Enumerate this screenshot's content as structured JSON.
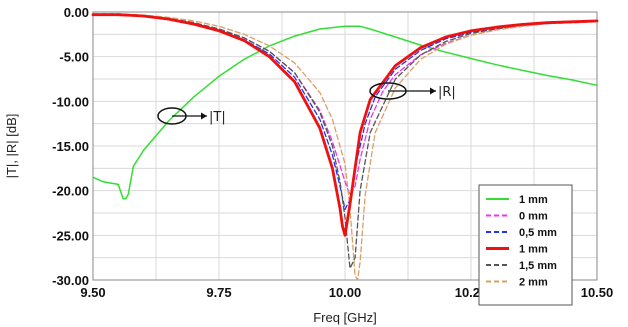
{
  "chart_data": {
    "type": "line",
    "xlabel": "Freq [GHz]",
    "ylabel": "|T|, |R| [dB]",
    "xlim": [
      9.5,
      10.5
    ],
    "ylim": [
      -30,
      0
    ],
    "xticks": [
      9.5,
      9.75,
      10.0,
      10.25,
      10.5
    ],
    "xtick_labels": [
      "9.50",
      "9.75",
      "10.00",
      "10.25",
      "10.50"
    ],
    "yticks": [
      0,
      -5,
      -10,
      -15,
      -20,
      -25,
      -30
    ],
    "ytick_labels": [
      "0.00",
      "-5.00",
      "-10.00",
      "-15.00",
      "-20.00",
      "-25.00",
      "-30.00"
    ],
    "grid": true,
    "legend_position": "lower-right",
    "annotations": [
      {
        "text": "|T|",
        "target": "transmission curve near 9.67 GHz, -12 dB"
      },
      {
        "text": "|R|",
        "target": "reflection curves near 10.13 GHz, -9 dB"
      }
    ],
    "series": [
      {
        "name": "1 mm",
        "color": "#33dd33",
        "style": "solid",
        "width": 1.5,
        "x": [
          9.5,
          9.52,
          9.54,
          9.55,
          9.56,
          9.565,
          9.57,
          9.58,
          9.6,
          9.65,
          9.7,
          9.75,
          9.8,
          9.85,
          9.9,
          9.95,
          10.0,
          10.03,
          10.05,
          10.1,
          10.15,
          10.2,
          10.25,
          10.3,
          10.35,
          10.4,
          10.45,
          10.5
        ],
        "y": [
          -18.5,
          -19.0,
          -19.2,
          -19.3,
          -20.9,
          -20.9,
          -20.4,
          -17.3,
          -15.5,
          -12.2,
          -9.5,
          -7.2,
          -5.3,
          -3.8,
          -2.7,
          -1.9,
          -1.6,
          -1.6,
          -1.9,
          -2.8,
          -3.7,
          -4.5,
          -5.2,
          -5.9,
          -6.5,
          -7.1,
          -7.6,
          -8.2
        ]
      },
      {
        "name": "0 mm",
        "color": "#ee33ee",
        "style": "dashed",
        "width": 1.3,
        "x": [
          9.5,
          9.55,
          9.6,
          9.65,
          9.7,
          9.75,
          9.8,
          9.85,
          9.9,
          9.95,
          9.975,
          10.0,
          10.01,
          10.02,
          10.03,
          10.05,
          10.075,
          10.1,
          10.15,
          10.2,
          10.25,
          10.3,
          10.35,
          10.4,
          10.45,
          10.5
        ],
        "y": [
          -0.3,
          -0.3,
          -0.45,
          -0.75,
          -1.2,
          -1.9,
          -2.9,
          -4.4,
          -6.8,
          -11.0,
          -14.5,
          -19.0,
          -20.5,
          -19.5,
          -16.5,
          -12.0,
          -8.9,
          -7.0,
          -4.8,
          -3.5,
          -2.6,
          -2.0,
          -1.6,
          -1.3,
          -1.2,
          -1.1
        ]
      },
      {
        "name": "0,5 mm",
        "color": "#2233ee",
        "style": "dashed",
        "width": 1.3,
        "x": [
          9.5,
          9.55,
          9.6,
          9.65,
          9.7,
          9.75,
          9.8,
          9.85,
          9.9,
          9.95,
          9.975,
          9.99,
          10.0,
          10.01,
          10.02,
          10.04,
          10.06,
          10.1,
          10.15,
          10.2,
          10.25,
          10.3,
          10.35,
          10.4,
          10.45,
          10.5
        ],
        "y": [
          -0.3,
          -0.3,
          -0.45,
          -0.8,
          -1.3,
          -2.0,
          -3.1,
          -4.7,
          -7.3,
          -12.0,
          -16.0,
          -19.5,
          -22.1,
          -21.0,
          -17.5,
          -12.5,
          -9.5,
          -6.4,
          -4.3,
          -3.0,
          -2.3,
          -1.8,
          -1.5,
          -1.3,
          -1.1,
          -1.0
        ]
      },
      {
        "name": "1 mm",
        "color": "#ee1111",
        "style": "solid",
        "width": 2.8,
        "x": [
          9.5,
          9.55,
          9.6,
          9.65,
          9.7,
          9.75,
          9.8,
          9.85,
          9.9,
          9.95,
          9.975,
          9.99,
          9.995,
          10.0,
          10.01,
          10.03,
          10.05,
          10.1,
          10.15,
          10.2,
          10.25,
          10.3,
          10.35,
          10.4,
          10.45,
          10.5
        ],
        "y": [
          -0.3,
          -0.3,
          -0.45,
          -0.8,
          -1.35,
          -2.1,
          -3.2,
          -5.0,
          -7.8,
          -13.0,
          -17.5,
          -22.0,
          -24.0,
          -25.0,
          -21.5,
          -13.5,
          -9.8,
          -6.0,
          -4.0,
          -2.8,
          -2.1,
          -1.7,
          -1.4,
          -1.2,
          -1.1,
          -1.0
        ]
      },
      {
        "name": "1,5 mm",
        "color": "#555555",
        "style": "dashed",
        "width": 1.3,
        "x": [
          9.5,
          9.55,
          9.6,
          9.65,
          9.7,
          9.75,
          9.8,
          9.85,
          9.9,
          9.95,
          9.975,
          9.99,
          10.0,
          10.01,
          10.02,
          10.03,
          10.05,
          10.1,
          10.15,
          10.2,
          10.25,
          10.3,
          10.35,
          10.4,
          10.45,
          10.5
        ],
        "y": [
          -0.25,
          -0.25,
          -0.4,
          -0.7,
          -1.2,
          -1.9,
          -2.9,
          -4.4,
          -6.8,
          -11.2,
          -15.0,
          -19.0,
          -23.0,
          -28.7,
          -27.5,
          -20.0,
          -13.5,
          -7.5,
          -4.8,
          -3.3,
          -2.4,
          -1.9,
          -1.5,
          -1.3,
          -1.1,
          -1.0
        ]
      },
      {
        "name": "2 mm",
        "color": "#d9a066",
        "style": "dashed",
        "width": 1.3,
        "x": [
          9.5,
          9.55,
          9.6,
          9.65,
          9.7,
          9.75,
          9.8,
          9.85,
          9.9,
          9.95,
          9.975,
          10.0,
          10.01,
          10.02,
          10.025,
          10.03,
          10.04,
          10.06,
          10.1,
          10.15,
          10.2,
          10.25,
          10.3,
          10.35,
          10.4,
          10.45,
          10.5
        ],
        "y": [
          -0.2,
          -0.2,
          -0.35,
          -0.6,
          -1.0,
          -1.6,
          -2.5,
          -3.8,
          -5.7,
          -9.0,
          -12.0,
          -17.0,
          -22.0,
          -29.5,
          -30.0,
          -28.0,
          -20.5,
          -13.5,
          -8.5,
          -5.3,
          -3.6,
          -2.6,
          -2.0,
          -1.6,
          -1.3,
          -1.2,
          -1.1
        ]
      }
    ]
  }
}
